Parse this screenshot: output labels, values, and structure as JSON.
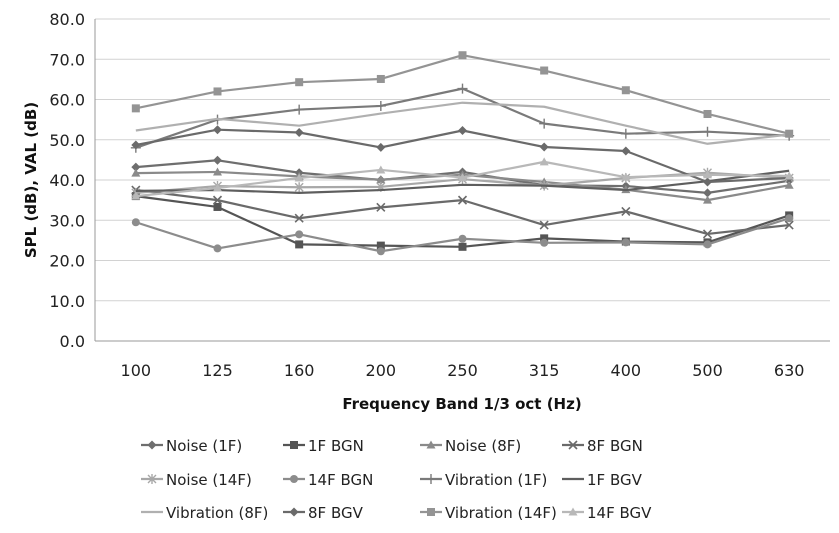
{
  "chart_data": {
    "type": "line",
    "title": "",
    "xlabel": "Frequency Band 1/3 oct (Hz)",
    "ylabel": "SPL (dB), VAL (dB)",
    "ylim": [
      0,
      80
    ],
    "yticks": [
      "0.0",
      "10.0",
      "20.0",
      "30.0",
      "40.0",
      "50.0",
      "60.0",
      "70.0",
      "80.0"
    ],
    "categories": [
      "100",
      "125",
      "160",
      "200",
      "250",
      "315",
      "400",
      "500",
      "630"
    ],
    "grid": "horizontal",
    "legend_position": "bottom",
    "series": [
      {
        "name": "Noise (1F)",
        "marker": "diamond",
        "color": "#6e6e6e",
        "values": [
          43.2,
          44.9,
          41.8,
          40.0,
          42.0,
          38.7,
          38.5,
          36.8,
          39.8
        ]
      },
      {
        "name": "1F BGN",
        "marker": "square",
        "color": "#555555",
        "values": [
          36.0,
          33.3,
          24.0,
          23.7,
          23.4,
          25.5,
          24.7,
          24.5,
          31.2
        ]
      },
      {
        "name": "Noise (8F)",
        "marker": "triangle",
        "color": "#8a8a8a",
        "values": [
          41.7,
          42.0,
          40.9,
          40.1,
          41.3,
          39.5,
          37.6,
          35.0,
          38.7
        ]
      },
      {
        "name": "8F BGN",
        "marker": "x",
        "color": "#6a6a6a",
        "values": [
          37.5,
          35.0,
          30.5,
          33.2,
          35.0,
          28.8,
          32.2,
          26.6,
          28.8
        ]
      },
      {
        "name": "Noise (14F)",
        "marker": "star",
        "color": "#a8a8a8",
        "values": [
          36.8,
          38.5,
          38.2,
          38.3,
          40.2,
          38.6,
          40.5,
          41.8,
          40.5
        ]
      },
      {
        "name": "14F BGN",
        "marker": "circle",
        "color": "#8c8c8c",
        "values": [
          29.5,
          23.0,
          26.5,
          22.3,
          25.4,
          24.4,
          24.5,
          24.0,
          30.5
        ]
      },
      {
        "name": "Vibration (1F)",
        "marker": "plus",
        "color": "#7a7a7a",
        "values": [
          48.0,
          55.0,
          57.5,
          58.4,
          62.7,
          54.0,
          51.5,
          52.0,
          51.0
        ]
      },
      {
        "name": "1F BGV",
        "marker": "none",
        "color": "#5e5e5e",
        "values": [
          37.3,
          37.5,
          36.8,
          37.5,
          38.8,
          38.6,
          37.5,
          39.7,
          42.3
        ]
      },
      {
        "name": "Vibration (8F)",
        "marker": "none",
        "color": "#b0b0b0",
        "values": [
          52.3,
          55.2,
          53.5,
          56.5,
          59.2,
          58.2,
          53.5,
          49.0,
          51.3
        ]
      },
      {
        "name": "8F BGV",
        "marker": "diamond",
        "color": "#6a6a6a",
        "values": [
          48.7,
          52.5,
          51.8,
          48.1,
          52.3,
          48.2,
          47.2,
          39.5,
          40.5
        ]
      },
      {
        "name": "Vibration (14F)",
        "marker": "square",
        "color": "#949494",
        "values": [
          57.8,
          62.0,
          64.3,
          65.1,
          71.0,
          67.2,
          62.3,
          56.4,
          51.5
        ]
      },
      {
        "name": "14F BGV",
        "marker": "triangle",
        "color": "#b8b8b8",
        "values": [
          36.0,
          38.0,
          40.5,
          42.5,
          40.6,
          44.5,
          40.7,
          41.3,
          41.0
        ]
      }
    ]
  }
}
